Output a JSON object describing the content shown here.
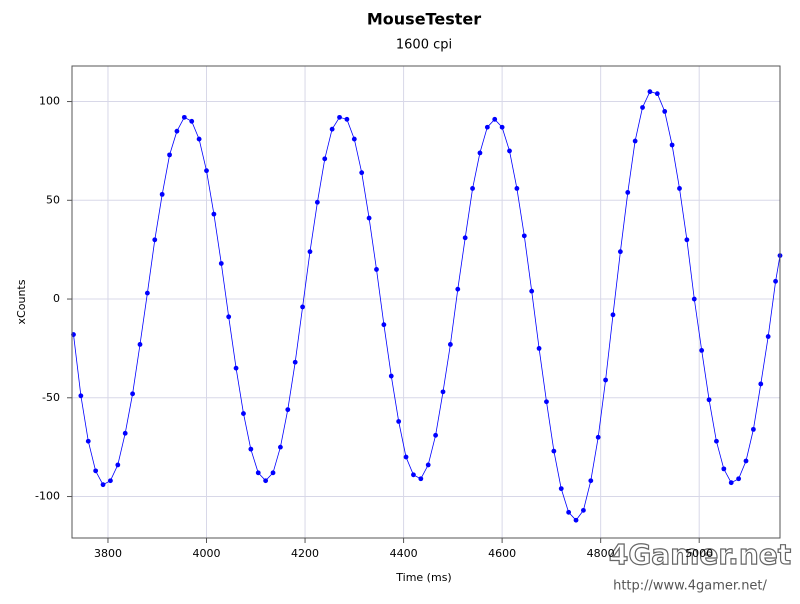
{
  "chart_data": {
    "type": "scatter-line",
    "title": "MouseTester",
    "subtitle": "1600 cpi",
    "x_label": "Time (ms)",
    "y_label": "xCounts",
    "watermark": "4Gamer.net",
    "watermark_url": "http://www.4gamer.net/",
    "x": [
      3730,
      3745,
      3760,
      3775,
      3790,
      3805,
      3820,
      3835,
      3850,
      3865,
      3880,
      3895,
      3910,
      3925,
      3940,
      3955,
      3970,
      3985,
      4000,
      4015,
      4030,
      4045,
      4060,
      4075,
      4090,
      4105,
      4120,
      4135,
      4150,
      4165,
      4180,
      4195,
      4210,
      4225,
      4240,
      4255,
      4270,
      4285,
      4300,
      4315,
      4330,
      4345,
      4360,
      4375,
      4390,
      4405,
      4420,
      4435,
      4450,
      4465,
      4480,
      4495,
      4510,
      4525,
      4540,
      4555,
      4570,
      4585,
      4600,
      4615,
      4630,
      4645,
      4660,
      4675,
      4690,
      4705,
      4720,
      4735,
      4750,
      4765,
      4780,
      4795,
      4810,
      4825,
      4840,
      4855,
      4870,
      4885,
      4900,
      4915,
      4930,
      4945,
      4960,
      4975,
      4990,
      5005,
      5020,
      5035,
      5050,
      5065,
      5080,
      5095,
      5110,
      5125,
      5140,
      5155,
      5164
    ],
    "series": [
      {
        "name": "xCounts",
        "color": "#0000ff",
        "values": [
          -18,
          -49,
          -72,
          -87,
          -94,
          -92,
          -84,
          -68,
          -48,
          -23,
          3,
          30,
          53,
          73,
          85,
          92,
          90,
          81,
          65,
          43,
          18,
          -9,
          -35,
          -58,
          -76,
          -88,
          -92,
          -88,
          -75,
          -56,
          -32,
          -4,
          24,
          49,
          71,
          86,
          92,
          91,
          81,
          64,
          41,
          15,
          -13,
          -39,
          -62,
          -80,
          -89,
          -91,
          -84,
          -69,
          -47,
          -23,
          5,
          31,
          56,
          74,
          87,
          91,
          87,
          75,
          56,
          32,
          4,
          -25,
          -52,
          -77,
          -96,
          -108,
          -112,
          -107,
          -92,
          -70,
          -41,
          -8,
          24,
          54,
          80,
          97,
          105,
          104,
          95,
          78,
          56,
          30,
          0,
          -26,
          -51,
          -72,
          -86,
          -93,
          -91,
          -82,
          -66,
          -43,
          -19,
          9,
          22
        ]
      }
    ],
    "xlim": [
      3727,
      5164
    ],
    "ylim": [
      -121,
      118
    ],
    "xticks": [
      3800,
      4000,
      4200,
      4400,
      4600,
      4800,
      5000
    ],
    "yticks": [
      -100,
      -50,
      0,
      50,
      100
    ],
    "grid": true
  }
}
